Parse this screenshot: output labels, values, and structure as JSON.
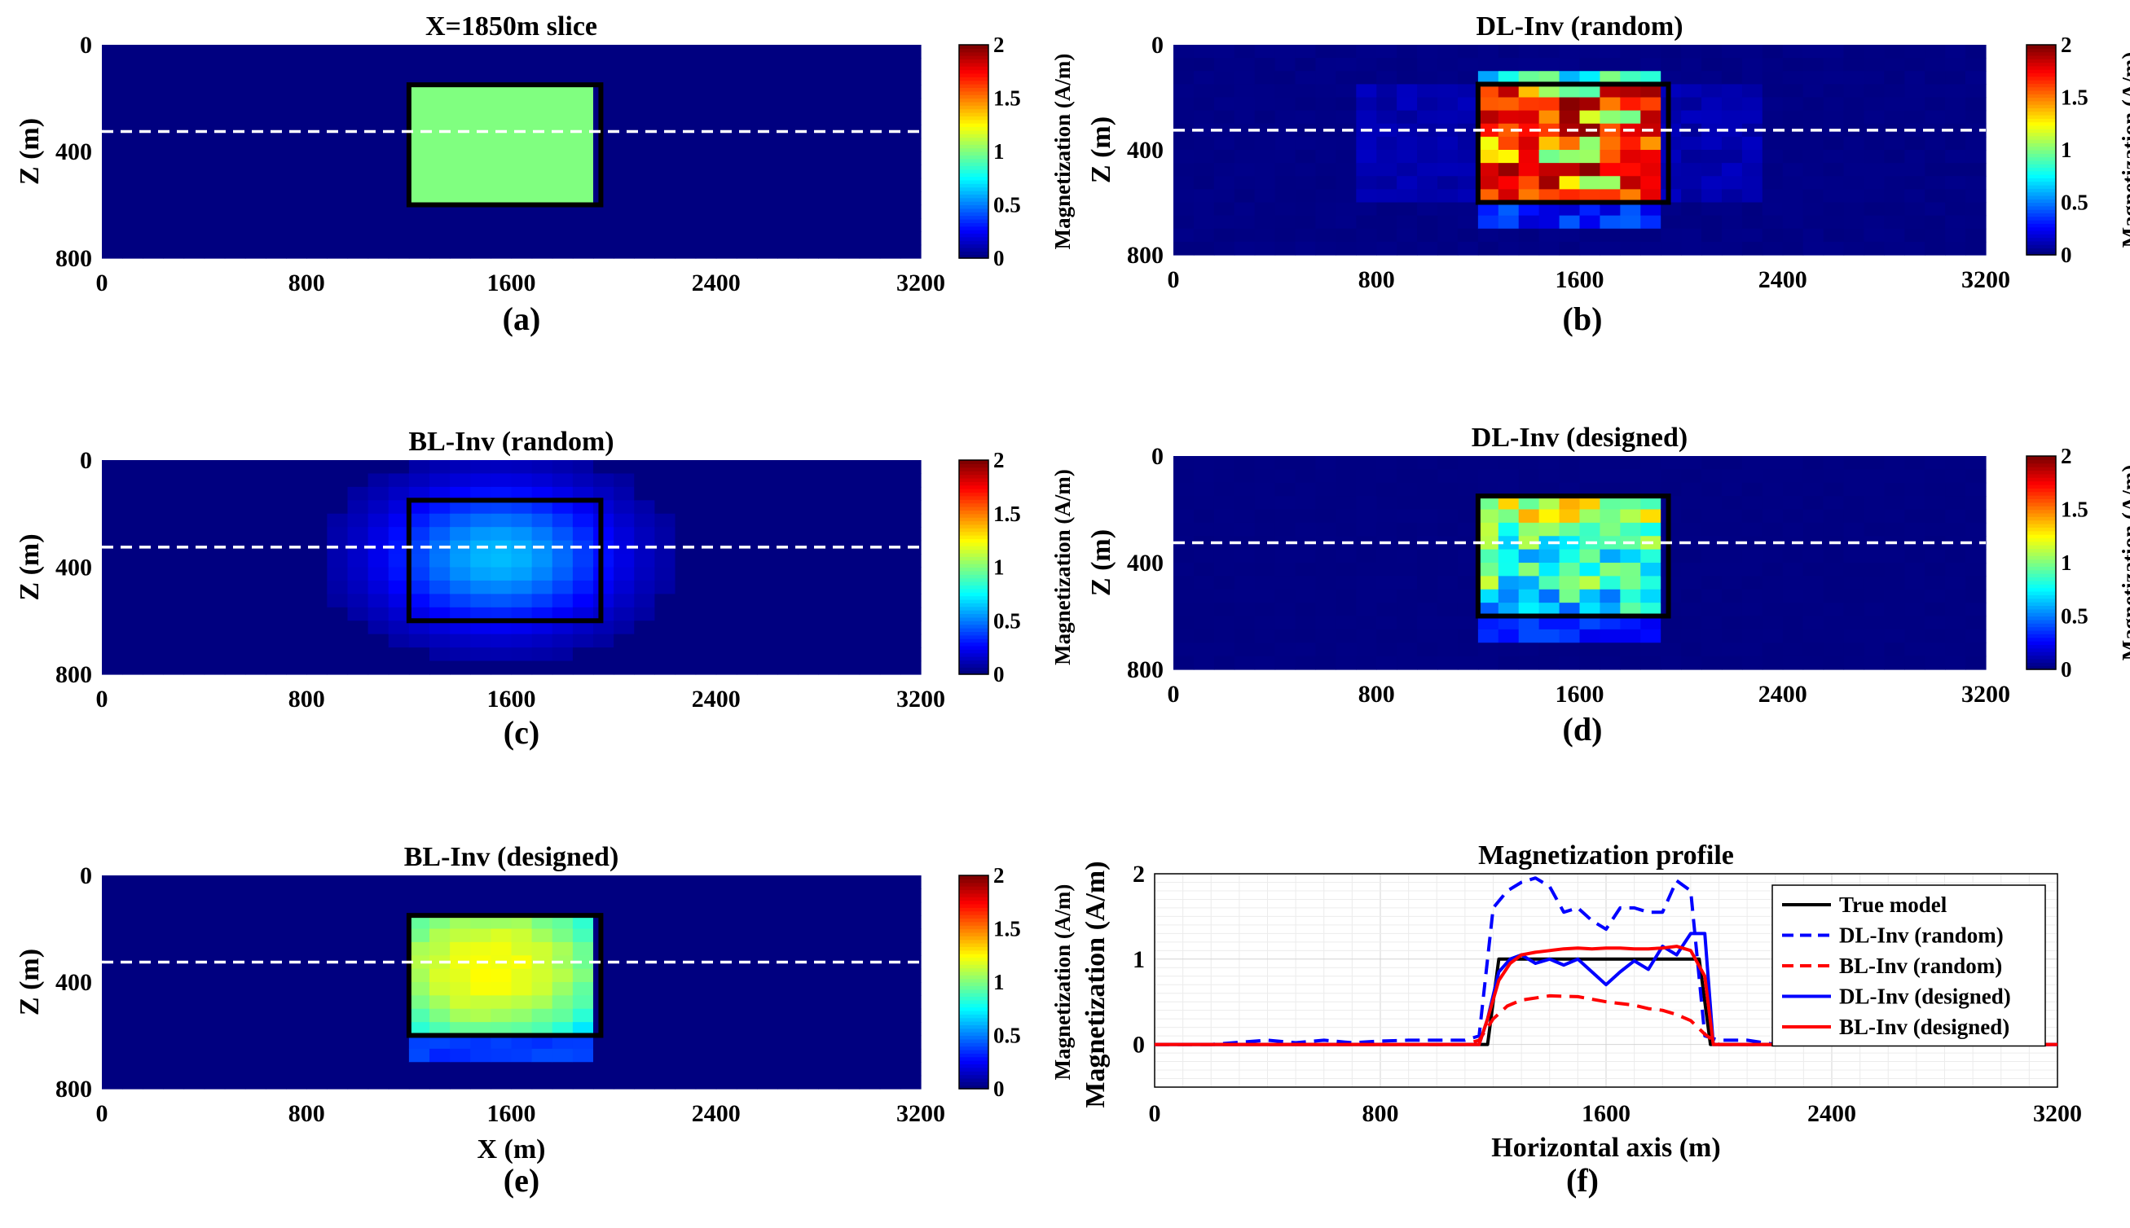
{
  "figure": {
    "colorbar_label": "Magnetization (A/m)",
    "colorbar_ticks": [
      "0",
      "0.5",
      "1",
      "1.5",
      "2"
    ],
    "colormap": [
      "#00008f",
      "#0000ff",
      "#00ffff",
      "#ffff00",
      "#ff0000",
      "#800000"
    ]
  },
  "chart_data": [
    {
      "type": "heatmap",
      "id": "a",
      "caption": "(a)",
      "title": "X=1850m slice",
      "xlabel": "",
      "ylabel": "Z (m)",
      "xlim": [
        0,
        3200
      ],
      "ylim": [
        0,
        800
      ],
      "clim": [
        0,
        2
      ],
      "xticks": [
        "0",
        "800",
        "1600",
        "2400",
        "3200"
      ],
      "yticks": [
        "0",
        "400",
        "800"
      ],
      "body": {
        "x": [
          1200,
          1950
        ],
        "z": [
          150,
          600
        ]
      },
      "profile_depth": 325,
      "description": "uniform 1.0 A/m block inside outlined body, 0 elsewhere"
    },
    {
      "type": "heatmap",
      "id": "b",
      "caption": "(b)",
      "title": "DL-Inv (random)",
      "xlabel": "",
      "ylabel": "Z (m)",
      "xlim": [
        0,
        3200
      ],
      "ylim": [
        0,
        800
      ],
      "clim": [
        0,
        2
      ],
      "xticks": [
        "0",
        "800",
        "1600",
        "2400",
        "3200"
      ],
      "yticks": [
        "0",
        "400",
        "800"
      ],
      "body": {
        "x": [
          1200,
          1950
        ],
        "z": [
          150,
          600
        ]
      },
      "profile_depth": 325,
      "description": "high, blocky values ~1-2 A/m inside body with faint leakage"
    },
    {
      "type": "heatmap",
      "id": "c",
      "caption": "(c)",
      "title": "BL-Inv (random)",
      "xlabel": "",
      "ylabel": "Z (m)",
      "xlim": [
        0,
        3200
      ],
      "ylim": [
        0,
        800
      ],
      "clim": [
        0,
        2
      ],
      "xticks": [
        "0",
        "800",
        "1600",
        "2400",
        "3200"
      ],
      "yticks": [
        "0",
        "400",
        "800"
      ],
      "body": {
        "x": [
          1200,
          1950
        ],
        "z": [
          150,
          600
        ]
      },
      "profile_depth": 325,
      "description": "smooth blurred anomaly peaking ~0.6 A/m"
    },
    {
      "type": "heatmap",
      "id": "d",
      "caption": "(d)",
      "title": "DL-Inv (designed)",
      "xlabel": "",
      "ylabel": "Z (m)",
      "xlim": [
        0,
        3200
      ],
      "ylim": [
        0,
        800
      ],
      "clim": [
        0,
        2
      ],
      "xticks": [
        "0",
        "800",
        "1600",
        "2400",
        "3200"
      ],
      "yticks": [
        "0",
        "400",
        "800"
      ],
      "body": {
        "x": [
          1200,
          1950
        ],
        "z": [
          150,
          600
        ]
      },
      "profile_depth": 325,
      "description": "blocky values ~0.6-1.4 A/m inside body"
    },
    {
      "type": "heatmap",
      "id": "e",
      "caption": "(e)",
      "title": "BL-Inv (designed)",
      "xlabel": "X (m)",
      "ylabel": "Z (m)",
      "xlim": [
        0,
        3200
      ],
      "ylim": [
        0,
        800
      ],
      "clim": [
        0,
        2
      ],
      "xticks": [
        "0",
        "800",
        "1600",
        "2400",
        "3200"
      ],
      "yticks": [
        "0",
        "400",
        "800"
      ],
      "body": {
        "x": [
          1200,
          1950
        ],
        "z": [
          150,
          600
        ]
      },
      "profile_depth": 325,
      "description": "smooth anomaly ~0.9-1.2 A/m inside body"
    },
    {
      "type": "line",
      "id": "f",
      "caption": "(f)",
      "title": "Magnetization profile",
      "xlabel": "Horizontal axis (m)",
      "ylabel": "Magnetization (A/m)",
      "xlim": [
        0,
        3200
      ],
      "ylim": [
        -0.5,
        2
      ],
      "xticks": [
        "0",
        "800",
        "1600",
        "2400",
        "3200"
      ],
      "yticks": [
        "0",
        "1",
        "2"
      ],
      "grid": true,
      "legend_position": "top-right",
      "series": [
        {
          "name": "True model",
          "color": "#000000",
          "dash": "solid",
          "x": [
            0,
            1180,
            1220,
            1930,
            1970,
            3200
          ],
          "y": [
            0,
            0,
            1.0,
            1.0,
            0,
            0
          ]
        },
        {
          "name": "DL-Inv (random)",
          "color": "#0000ff",
          "dash": "dashed",
          "x": [
            0,
            200,
            400,
            500,
            600,
            700,
            800,
            900,
            1000,
            1100,
            1150,
            1200,
            1250,
            1300,
            1350,
            1400,
            1450,
            1500,
            1550,
            1600,
            1650,
            1700,
            1750,
            1800,
            1850,
            1900,
            1950,
            2000,
            2100,
            2200,
            2400,
            3200
          ],
          "y": [
            0,
            0,
            0.05,
            0.02,
            0.05,
            0.02,
            0.04,
            0.05,
            0.05,
            0.05,
            0.1,
            1.6,
            1.8,
            1.9,
            1.95,
            1.85,
            1.55,
            1.6,
            1.45,
            1.35,
            1.6,
            1.6,
            1.55,
            1.55,
            1.92,
            1.8,
            0.1,
            0.05,
            0.05,
            0,
            0,
            0
          ]
        },
        {
          "name": "BL-Inv (random)",
          "color": "#ff0000",
          "dash": "dashed",
          "x": [
            0,
            1100,
            1150,
            1200,
            1250,
            1300,
            1400,
            1500,
            1600,
            1700,
            1750,
            1800,
            1850,
            1900,
            1950,
            2000,
            3200
          ],
          "y": [
            0,
            0,
            0.05,
            0.3,
            0.45,
            0.52,
            0.57,
            0.56,
            0.5,
            0.46,
            0.42,
            0.4,
            0.35,
            0.28,
            0.12,
            0,
            0
          ]
        },
        {
          "name": "DL-Inv (designed)",
          "color": "#0000ff",
          "dash": "solid",
          "x": [
            0,
            1150,
            1180,
            1220,
            1260,
            1300,
            1350,
            1400,
            1450,
            1500,
            1550,
            1600,
            1650,
            1700,
            1750,
            1800,
            1850,
            1900,
            1950,
            1980,
            3200
          ],
          "y": [
            0,
            0,
            0.3,
            0.85,
            1.0,
            1.05,
            0.95,
            1.0,
            0.93,
            1.0,
            0.85,
            0.7,
            0.85,
            0.98,
            0.88,
            1.15,
            1.05,
            1.3,
            1.3,
            0,
            0
          ]
        },
        {
          "name": "BL-Inv (designed)",
          "color": "#ff0000",
          "dash": "solid",
          "x": [
            0,
            1150,
            1180,
            1220,
            1260,
            1300,
            1350,
            1400,
            1450,
            1500,
            1550,
            1600,
            1650,
            1700,
            1750,
            1800,
            1850,
            1900,
            1950,
            1980,
            3200
          ],
          "y": [
            0,
            0,
            0.3,
            0.75,
            0.95,
            1.05,
            1.08,
            1.1,
            1.12,
            1.13,
            1.12,
            1.13,
            1.13,
            1.12,
            1.12,
            1.13,
            1.15,
            1.1,
            0.8,
            0,
            0
          ]
        }
      ]
    }
  ]
}
